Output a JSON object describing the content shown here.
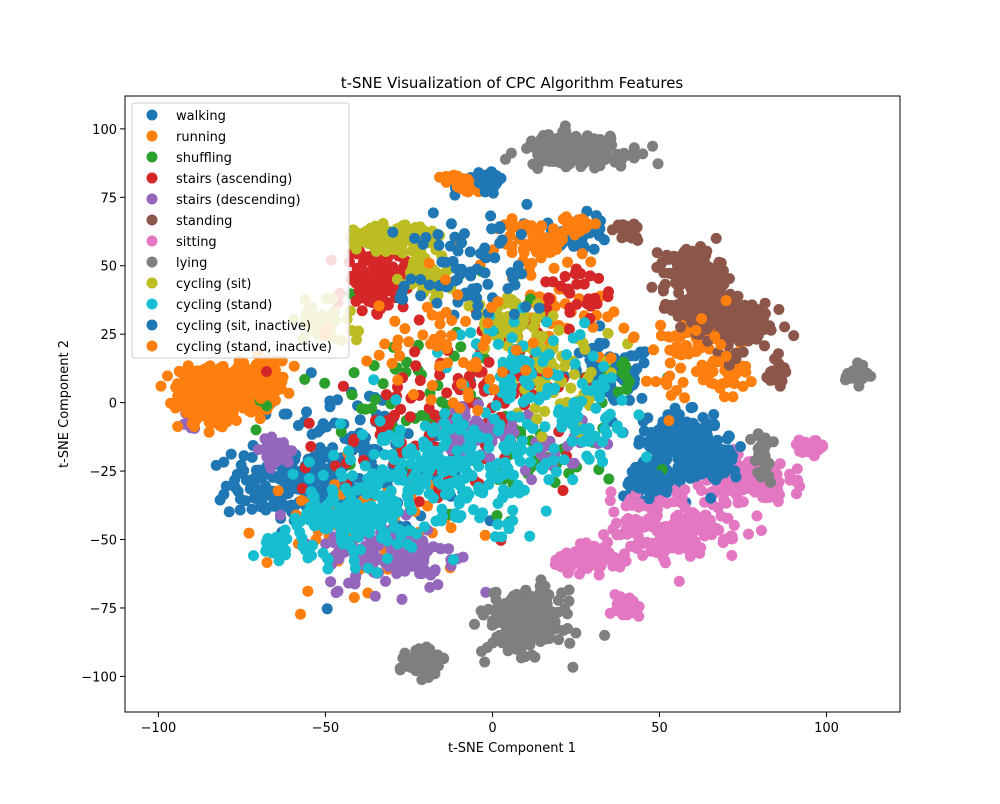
{
  "chart_data": {
    "type": "scatter",
    "title": "t-SNE Visualization of CPC Algorithm Features",
    "xlabel": "t-SNE Component 1",
    "ylabel": "t-SNE Component 2",
    "xlim": [
      -110,
      122
    ],
    "ylim": [
      -113,
      112
    ],
    "xticks": [
      -100,
      -50,
      0,
      50,
      100
    ],
    "yticks": [
      -100,
      -75,
      -50,
      -25,
      0,
      25,
      50,
      75,
      100
    ],
    "xtick_labels": [
      "−100",
      "−50",
      "0",
      "50",
      "100"
    ],
    "ytick_labels": [
      "−100",
      "−75",
      "−50",
      "−25",
      "0",
      "25",
      "50",
      "75",
      "100"
    ],
    "grid": false,
    "legend_position": "upper-left",
    "series": [
      {
        "name": "walking",
        "color": "#1f77b4",
        "clusters": [
          [
            -60,
            -30,
            18,
            12,
            160
          ],
          [
            55,
            -12,
            10,
            8,
            120
          ],
          [
            48,
            -28,
            8,
            6,
            70
          ],
          [
            35,
            10,
            12,
            10,
            80
          ],
          [
            -5,
            80,
            5,
            3,
            25
          ],
          [
            25,
            62,
            10,
            6,
            50
          ],
          [
            -40,
            -20,
            30,
            25,
            120
          ]
        ]
      },
      {
        "name": "running",
        "color": "#ff7f0e",
        "clusters": [
          [
            -80,
            5,
            12,
            8,
            320
          ],
          [
            -68,
            8,
            6,
            8,
            60
          ],
          [
            -8,
            79,
            4,
            3,
            20
          ],
          [
            15,
            58,
            12,
            8,
            60
          ],
          [
            60,
            25,
            10,
            6,
            40
          ],
          [
            -40,
            -45,
            25,
            20,
            60
          ],
          [
            20,
            30,
            15,
            15,
            40
          ],
          [
            72,
            10,
            6,
            6,
            20
          ]
        ]
      },
      {
        "name": "shuffling",
        "color": "#2ca02c",
        "clusters": [
          [
            -20,
            0,
            35,
            30,
            60
          ],
          [
            10,
            -20,
            25,
            20,
            40
          ],
          [
            40,
            10,
            10,
            8,
            15
          ]
        ]
      },
      {
        "name": "stairs (ascending)",
        "color": "#d62728",
        "clusters": [
          [
            -35,
            45,
            8,
            10,
            120
          ],
          [
            -25,
            -15,
            30,
            30,
            100
          ],
          [
            5,
            10,
            20,
            20,
            60
          ],
          [
            25,
            40,
            10,
            10,
            30
          ]
        ]
      },
      {
        "name": "stairs (descending)",
        "color": "#9467bd",
        "clusters": [
          [
            -30,
            -55,
            18,
            12,
            140
          ],
          [
            -5,
            -10,
            12,
            10,
            60
          ],
          [
            -65,
            -18,
            4,
            4,
            50
          ],
          [
            -90,
            -5,
            5,
            5,
            20
          ],
          [
            20,
            -15,
            10,
            10,
            20
          ]
        ]
      },
      {
        "name": "standing",
        "color": "#8c564b",
        "clusters": [
          [
            60,
            48,
            8,
            8,
            140
          ],
          [
            72,
            30,
            10,
            10,
            160
          ],
          [
            85,
            10,
            3,
            4,
            30
          ],
          [
            40,
            62,
            4,
            3,
            25
          ],
          [
            58,
            35,
            6,
            6,
            40
          ]
        ]
      },
      {
        "name": "sitting",
        "color": "#e377c2",
        "clusters": [
          [
            55,
            -45,
            18,
            12,
            180
          ],
          [
            75,
            -28,
            12,
            8,
            140
          ],
          [
            95,
            -16,
            4,
            2,
            40
          ],
          [
            40,
            -75,
            3,
            4,
            40
          ],
          [
            30,
            -57,
            10,
            4,
            80
          ]
        ]
      },
      {
        "name": "lying",
        "color": "#7f7f7f",
        "clusters": [
          [
            25,
            92,
            14,
            5,
            220
          ],
          [
            10,
            -80,
            10,
            10,
            260
          ],
          [
            -20,
            -95,
            5,
            4,
            90
          ],
          [
            109,
            10,
            3,
            3,
            30
          ],
          [
            81,
            -20,
            3,
            10,
            25
          ]
        ]
      },
      {
        "name": "cycling (sit)",
        "color": "#bcbd22",
        "clusters": [
          [
            -30,
            60,
            10,
            4,
            160
          ],
          [
            -20,
            48,
            6,
            8,
            60
          ],
          [
            5,
            30,
            10,
            8,
            60
          ],
          [
            20,
            10,
            15,
            15,
            60
          ],
          [
            -50,
            30,
            8,
            8,
            40
          ]
        ]
      },
      {
        "name": "cycling (stand)",
        "color": "#17becf",
        "clusters": [
          [
            -15,
            -25,
            30,
            20,
            240
          ],
          [
            -45,
            -45,
            18,
            12,
            140
          ],
          [
            10,
            10,
            20,
            20,
            80
          ],
          [
            -65,
            -52,
            5,
            4,
            30
          ],
          [
            30,
            -5,
            15,
            15,
            50
          ]
        ]
      },
      {
        "name": "cycling (sit, inactive)",
        "color": "#1f77b4",
        "clusters": [
          [
            65,
            -20,
            8,
            8,
            100
          ],
          [
            48,
            -30,
            5,
            4,
            40
          ],
          [
            -10,
            40,
            20,
            10,
            40
          ],
          [
            0,
            80,
            3,
            3,
            20
          ],
          [
            -5,
            55,
            15,
            15,
            40
          ]
        ]
      },
      {
        "name": "cycling (stand, inactive)",
        "color": "#ff7f0e",
        "clusters": [
          [
            -85,
            0,
            8,
            8,
            120
          ],
          [
            -15,
            20,
            25,
            20,
            60
          ],
          [
            60,
            10,
            15,
            15,
            40
          ],
          [
            -12,
            82,
            3,
            2,
            15
          ],
          [
            25,
            65,
            5,
            3,
            30
          ]
        ]
      }
    ]
  }
}
